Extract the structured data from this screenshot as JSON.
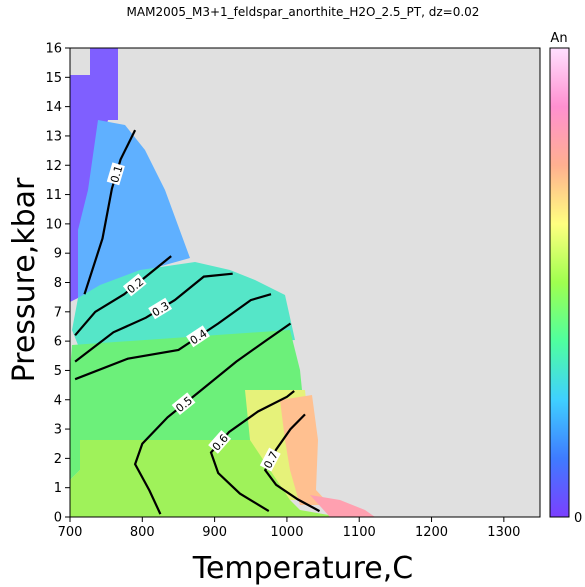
{
  "chart_data": {
    "type": "heatmap",
    "title": "MAM2005_M3+1_feldspar_anorthite_H2O_2.5_PT, dz=0.02",
    "xlabel": "Temperature,C",
    "ylabel": "Pressure,kbar",
    "xlim": [
      700,
      1350
    ],
    "ylim": [
      0,
      16
    ],
    "x_ticks": [
      700,
      800,
      900,
      1000,
      1100,
      1200,
      1300
    ],
    "y_ticks": [
      0,
      1,
      2,
      3,
      4,
      5,
      6,
      7,
      8,
      9,
      10,
      11,
      12,
      13,
      14,
      15,
      16
    ],
    "grid": false,
    "colorbar": {
      "label": "An",
      "min": 0,
      "max": 1,
      "min_label": "0",
      "colors": [
        "#7b3fff",
        "#3f7bff",
        "#3fd0ff",
        "#4fff9f",
        "#9fff4f",
        "#ffff80",
        "#ffb090",
        "#ff90d0",
        "#ffe0ff"
      ]
    },
    "background_color": "#e0e0e0",
    "contours": [
      {
        "level": 0.1,
        "label": "0.1",
        "points": [
          [
            720,
            7.6
          ],
          [
            745,
            9.5
          ],
          [
            758,
            11.2
          ],
          [
            770,
            12.2
          ],
          [
            790,
            13.2
          ]
        ]
      },
      {
        "level": 0.2,
        "label": "0.2",
        "points": [
          [
            707,
            6.2
          ],
          [
            735,
            7.0
          ],
          [
            775,
            7.6
          ],
          [
            805,
            8.2
          ],
          [
            840,
            8.9
          ]
        ]
      },
      {
        "level": 0.3,
        "label": "0.3",
        "points": [
          [
            707,
            5.3
          ],
          [
            760,
            6.3
          ],
          [
            805,
            6.8
          ],
          [
            845,
            7.4
          ],
          [
            885,
            8.2
          ],
          [
            925,
            8.3
          ]
        ]
      },
      {
        "level": 0.4,
        "label": "0.4",
        "points": [
          [
            707,
            4.7
          ],
          [
            780,
            5.4
          ],
          [
            850,
            5.7
          ],
          [
            905,
            6.6
          ],
          [
            950,
            7.4
          ],
          [
            978,
            7.6
          ]
        ]
      },
      {
        "level": 0.5,
        "label": "0.5",
        "points": [
          [
            825,
            0.1
          ],
          [
            810,
            0.9
          ],
          [
            790,
            1.8
          ],
          [
            800,
            2.5
          ],
          [
            835,
            3.4
          ],
          [
            880,
            4.3
          ],
          [
            930,
            5.3
          ],
          [
            970,
            6.0
          ],
          [
            1005,
            6.6
          ]
        ]
      },
      {
        "level": 0.6,
        "label": "0.6",
        "points": [
          [
            975,
            0.2
          ],
          [
            935,
            0.8
          ],
          [
            905,
            1.5
          ],
          [
            895,
            2.2
          ],
          [
            920,
            2.9
          ],
          [
            960,
            3.6
          ],
          [
            1000,
            4.1
          ],
          [
            1010,
            4.3
          ]
        ]
      },
      {
        "level": 0.7,
        "label": "0.7",
        "points": [
          [
            1045,
            0.2
          ],
          [
            1015,
            0.6
          ],
          [
            985,
            1.1
          ],
          [
            970,
            1.6
          ],
          [
            985,
            2.3
          ],
          [
            1005,
            3.0
          ],
          [
            1025,
            3.5
          ]
        ]
      }
    ]
  }
}
